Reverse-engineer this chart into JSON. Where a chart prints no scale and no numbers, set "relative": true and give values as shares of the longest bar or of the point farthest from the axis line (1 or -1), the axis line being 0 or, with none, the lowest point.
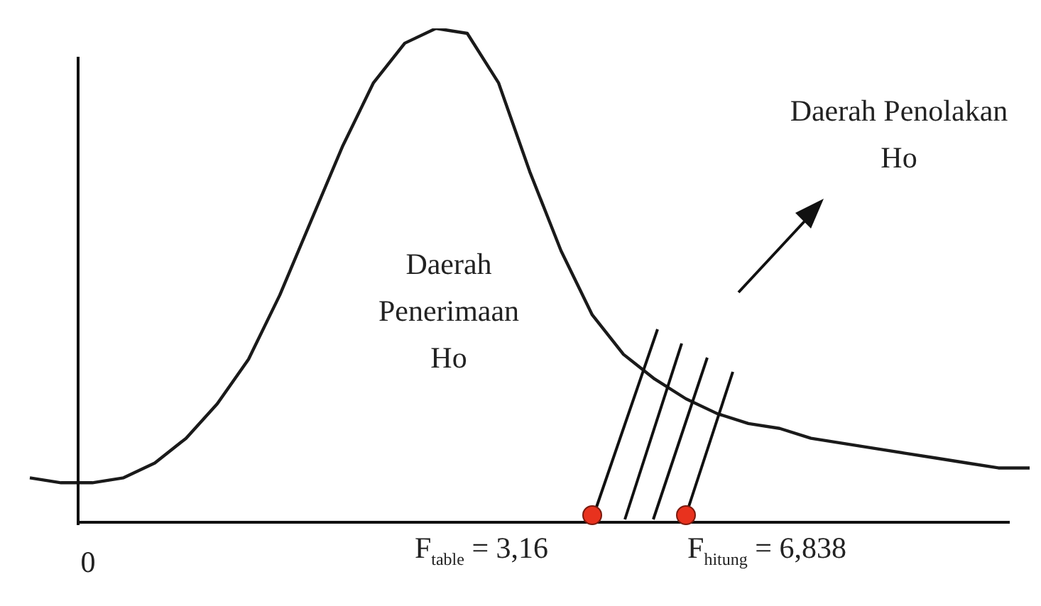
{
  "chart_data": {
    "type": "line",
    "relative": true,
    "categories": [
      null,
      null,
      null,
      null,
      null,
      null,
      null,
      null,
      null,
      null,
      null,
      null,
      null,
      null,
      null,
      null,
      null,
      null,
      null,
      null,
      null,
      null,
      null,
      null,
      null,
      null,
      null,
      null,
      null,
      null,
      null,
      null,
      null
    ],
    "series": [
      {
        "color": "#1a1a1a",
        "values": [
          0.09,
          0.08,
          0.08,
          0.09,
          0.12,
          0.17,
          0.24,
          0.33,
          0.46,
          0.61,
          0.76,
          0.89,
          0.97,
          1,
          0.99,
          0.89,
          0.71,
          0.55,
          0.42,
          0.34,
          0.29,
          0.25,
          0.22,
          0.2,
          0.19,
          0.17,
          0.16,
          0.15,
          0.14,
          0.13,
          0.12,
          0.11,
          0.11
        ]
      }
    ],
    "annotations": [
      "Daerah Penolakan Ho",
      "Daerah Penerimaan Ho",
      "0",
      "F$_{table}$ = 3,16",
      "F$_{hitung}$ = 6,838"
    ],
    "legend": false,
    "marker": "none"
  }
}
